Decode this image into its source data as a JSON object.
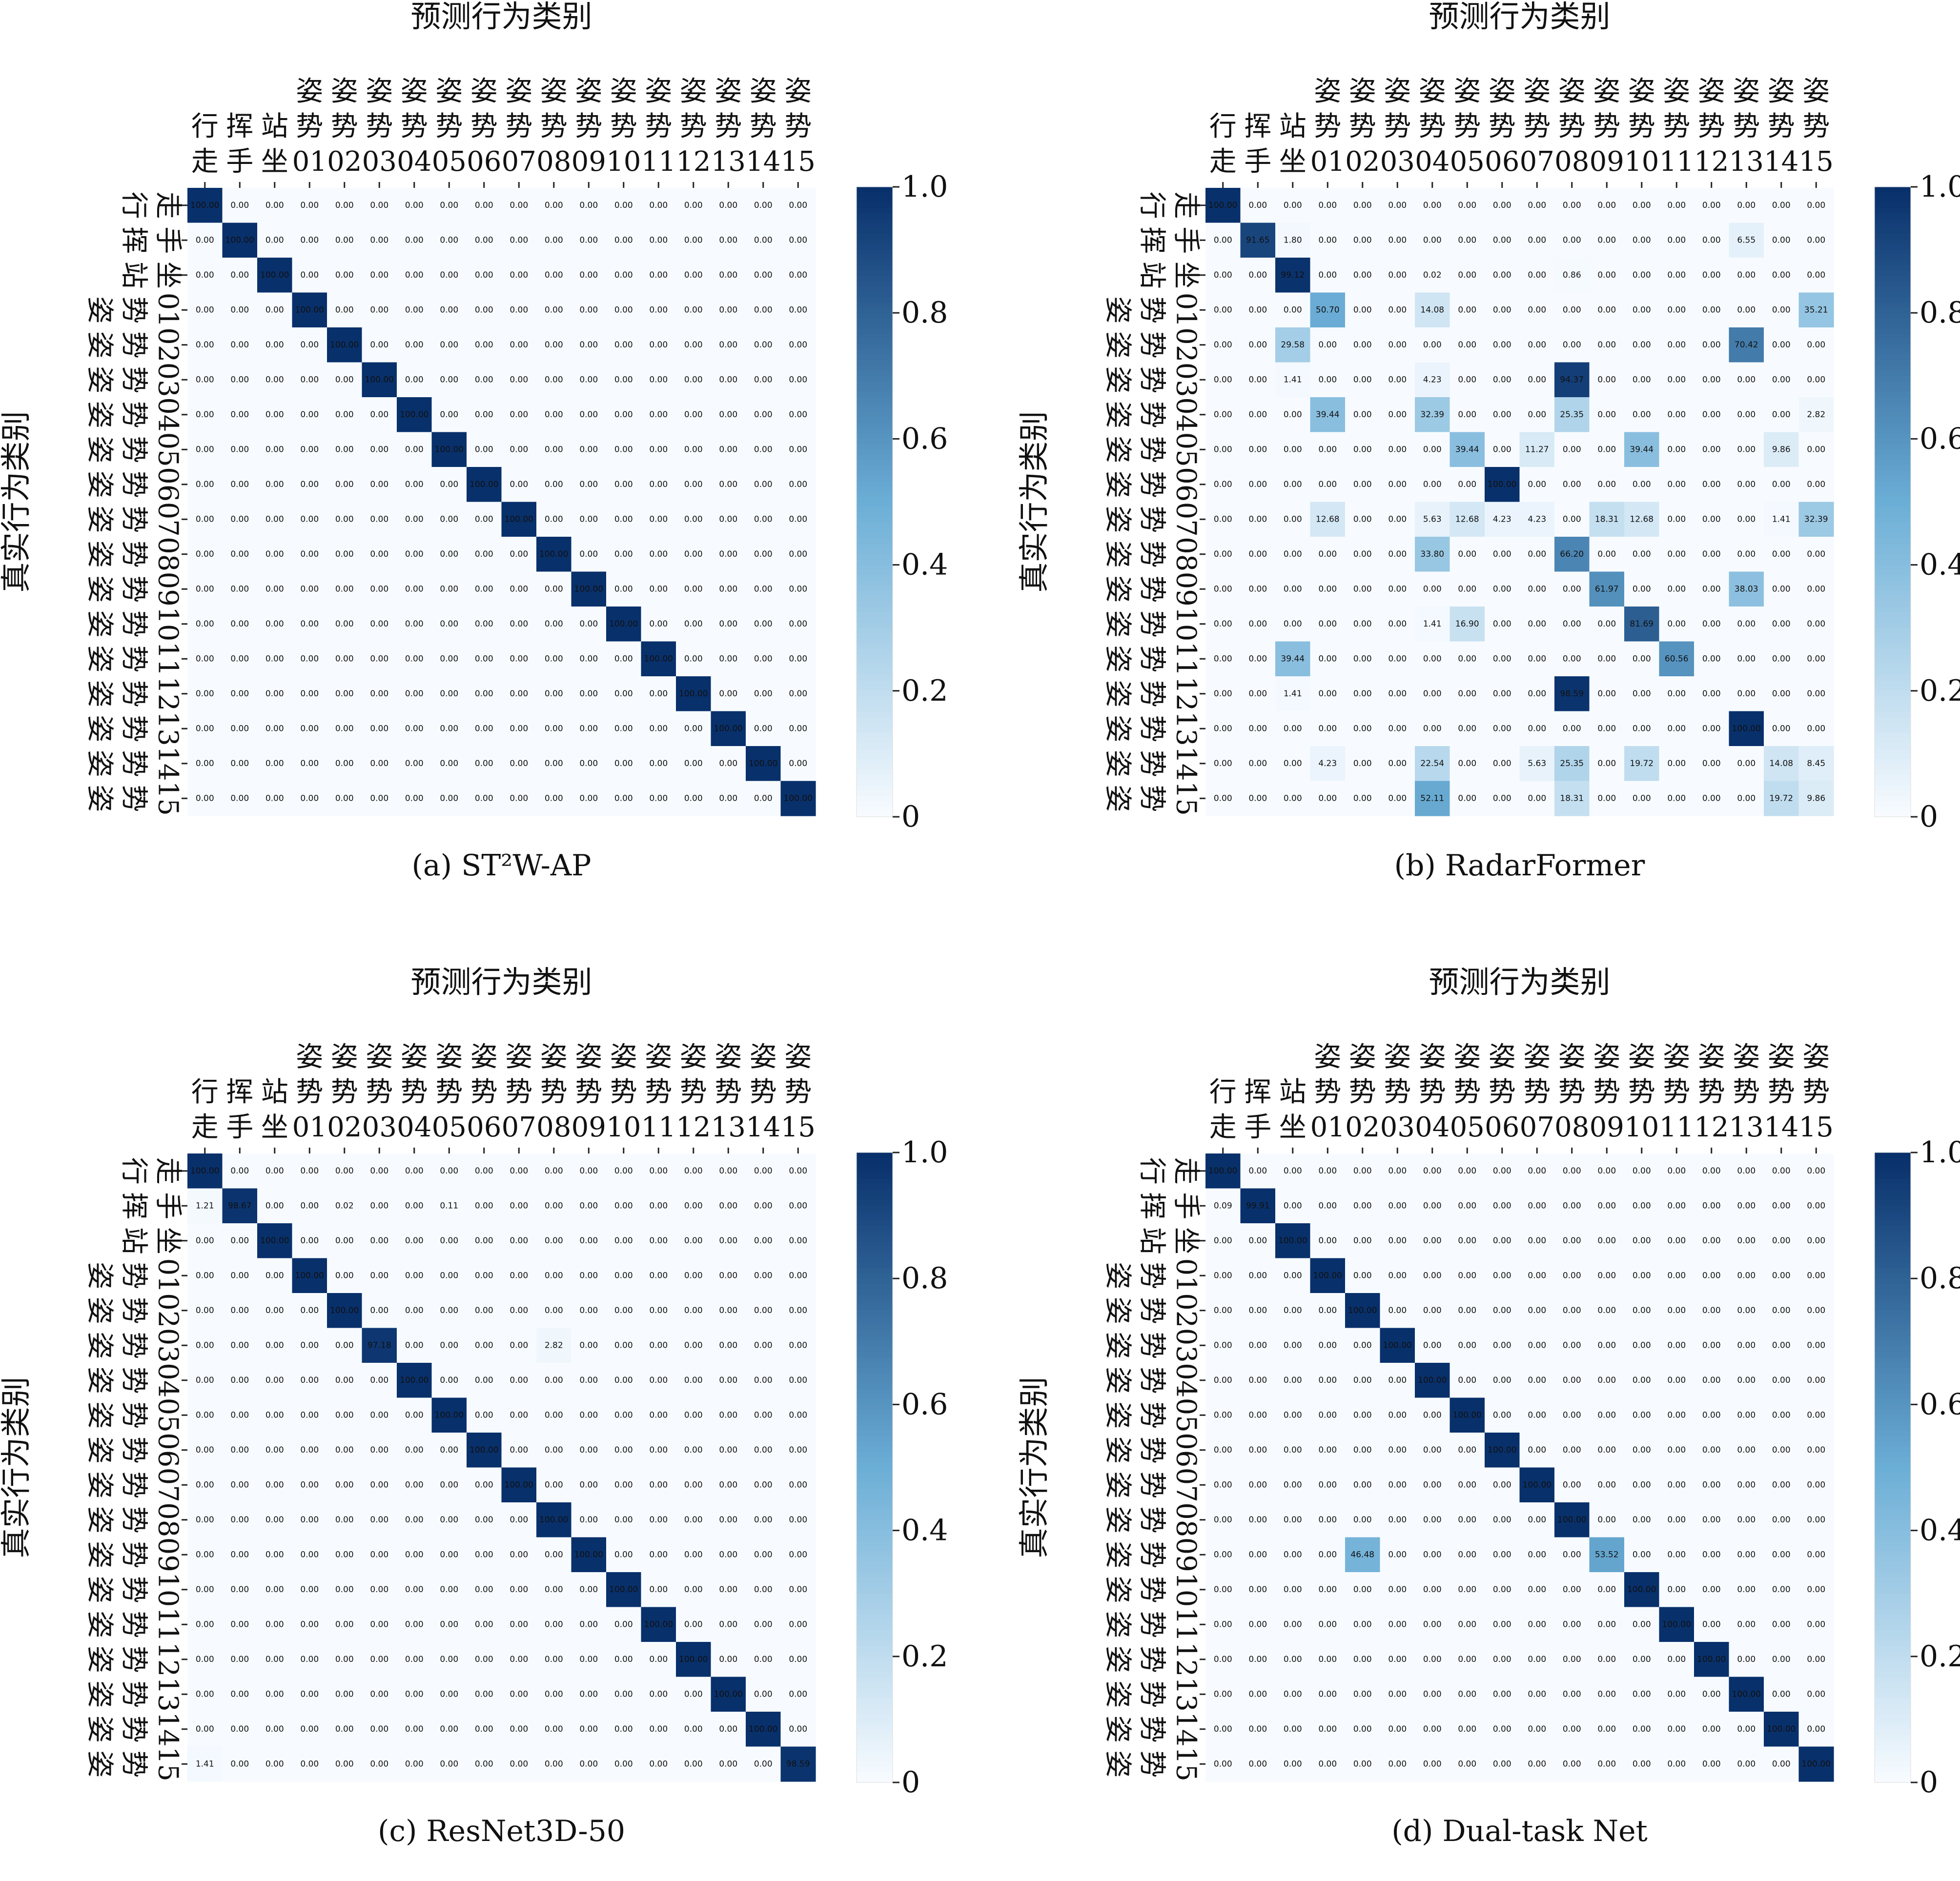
{
  "shared": {
    "x_axis_title": "预测行为类别",
    "y_axis_title": "真实行为类别",
    "class_labels": [
      [
        "行",
        "走"
      ],
      [
        "挥",
        "手"
      ],
      [
        "站",
        "坐"
      ],
      [
        "姿",
        "势",
        "01"
      ],
      [
        "姿",
        "势",
        "02"
      ],
      [
        "姿",
        "势",
        "03"
      ],
      [
        "姿",
        "势",
        "04"
      ],
      [
        "姿",
        "势",
        "05"
      ],
      [
        "姿",
        "势",
        "06"
      ],
      [
        "姿",
        "势",
        "07"
      ],
      [
        "姿",
        "势",
        "08"
      ],
      [
        "姿",
        "势",
        "09"
      ],
      [
        "姿",
        "势",
        "10"
      ],
      [
        "姿",
        "势",
        "11"
      ],
      [
        "姿",
        "势",
        "12"
      ],
      [
        "姿",
        "势",
        "13"
      ],
      [
        "姿",
        "势",
        "14"
      ],
      [
        "姿",
        "势",
        "15"
      ]
    ],
    "colorbar_ticks": [
      "0",
      "0.2",
      "0.4",
      "0.6",
      "0.8",
      "1.0"
    ],
    "colormap": {
      "low": "#f7fbff",
      "mid": "#6baed6",
      "high": "#08306b",
      "name": "Blues"
    },
    "annotation_text_colors": {
      "dark_cell": "#ffffff",
      "light_cell": "#222222"
    }
  },
  "chart_data": [
    {
      "type": "heatmap",
      "caption": "(a) ST²W-AP",
      "title": "预测行为类别",
      "xlabel": "预测行为类别",
      "ylabel": "真实行为类别",
      "ylim": [
        0,
        1
      ],
      "off_diagonal": [],
      "diagonal": [
        100,
        100,
        100,
        100,
        100,
        100,
        100,
        100,
        100,
        100,
        100,
        100,
        100,
        100,
        100,
        100,
        100,
        100
      ]
    },
    {
      "type": "heatmap",
      "caption": "(b) RadarFormer",
      "title": "预测行为类别",
      "xlabel": "预测行为类别",
      "ylabel": "真实行为类别",
      "ylim": [
        0,
        1
      ],
      "off_diagonal": [
        [
          1,
          2,
          1.8
        ],
        [
          1,
          15,
          6.55
        ],
        [
          2,
          6,
          0.02
        ],
        [
          2,
          10,
          0.86
        ],
        [
          3,
          6,
          14.08
        ],
        [
          3,
          17,
          35.21
        ],
        [
          4,
          2,
          29.58
        ],
        [
          4,
          15,
          70.42
        ],
        [
          5,
          2,
          1.41
        ],
        [
          5,
          6,
          4.23
        ],
        [
          5,
          10,
          94.37
        ],
        [
          6,
          3,
          39.44
        ],
        [
          6,
          10,
          25.35
        ],
        [
          6,
          17,
          2.82
        ],
        [
          7,
          9,
          11.27
        ],
        [
          7,
          12,
          39.44
        ],
        [
          7,
          16,
          9.86
        ],
        [
          9,
          3,
          12.68
        ],
        [
          9,
          6,
          5.63
        ],
        [
          9,
          7,
          12.68
        ],
        [
          9,
          8,
          4.23
        ],
        [
          9,
          11,
          18.31
        ],
        [
          9,
          12,
          12.68
        ],
        [
          9,
          16,
          1.41
        ],
        [
          9,
          17,
          32.39
        ],
        [
          10,
          6,
          33.8
        ],
        [
          11,
          15,
          38.03
        ],
        [
          12,
          6,
          1.41
        ],
        [
          12,
          7,
          16.9
        ],
        [
          13,
          2,
          39.44
        ],
        [
          14,
          2,
          1.41
        ],
        [
          14,
          10,
          98.59
        ],
        [
          15,
          14,
          0.0
        ],
        [
          16,
          3,
          4.23
        ],
        [
          16,
          6,
          22.54
        ],
        [
          16,
          9,
          5.63
        ],
        [
          16,
          10,
          25.35
        ],
        [
          16,
          12,
          19.72
        ],
        [
          16,
          17,
          8.45
        ],
        [
          17,
          6,
          52.11
        ],
        [
          17,
          10,
          18.31
        ],
        [
          17,
          16,
          19.72
        ]
      ],
      "diagonal": [
        100,
        91.65,
        99.12,
        50.7,
        0.0,
        0.0,
        32.39,
        39.44,
        100,
        4.23,
        66.2,
        61.97,
        81.69,
        60.56,
        0.0,
        100,
        14.08,
        9.86
      ]
    },
    {
      "type": "heatmap",
      "caption": "(c) ResNet3D-50",
      "title": "预测行为类别",
      "xlabel": "预测行为类别",
      "ylabel": "真实行为类别",
      "ylim": [
        0,
        1
      ],
      "off_diagonal": [
        [
          1,
          0,
          1.21
        ],
        [
          1,
          4,
          0.02
        ],
        [
          1,
          7,
          0.11
        ],
        [
          5,
          10,
          2.82
        ],
        [
          17,
          0,
          1.41
        ]
      ],
      "diagonal": [
        100,
        98.67,
        100,
        100,
        100,
        97.18,
        100,
        100,
        100,
        100,
        100,
        100,
        100,
        100,
        100,
        100,
        100,
        98.59
      ]
    },
    {
      "type": "heatmap",
      "caption": "(d) Dual-task Net",
      "title": "预测行为类别",
      "xlabel": "预测行为类别",
      "ylabel": "真实行为类别",
      "ylim": [
        0,
        1
      ],
      "off_diagonal": [
        [
          1,
          0,
          0.09
        ],
        [
          11,
          4,
          46.48
        ]
      ],
      "diagonal": [
        100,
        99.91,
        100,
        100,
        100,
        100,
        100,
        100,
        100,
        100,
        100,
        53.52,
        100,
        100,
        100,
        100,
        100,
        100
      ]
    }
  ]
}
